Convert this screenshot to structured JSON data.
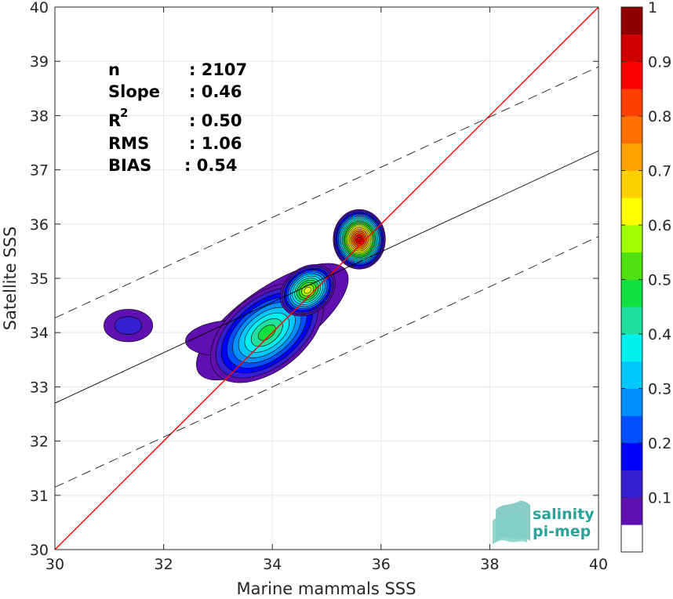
{
  "chart_data": {
    "type": "scatter",
    "subtype": "density-contour",
    "title": "",
    "xlabel": "Marine mammals SSS",
    "ylabel": "Satellite SSS",
    "xlim": [
      30,
      40
    ],
    "ylim": [
      30,
      40
    ],
    "x_ticks": [
      "30",
      "32",
      "34",
      "36",
      "38",
      "40"
    ],
    "y_ticks": [
      "30",
      "31",
      "32",
      "33",
      "34",
      "35",
      "36",
      "37",
      "38",
      "39",
      "40"
    ],
    "grid": true,
    "stats": [
      {
        "label": "n",
        "value": ": 2107"
      },
      {
        "label": "Slope",
        "value": ": 0.46"
      },
      {
        "label": "R",
        "sup": "2",
        "value": ": 0.50"
      },
      {
        "label": "RMS",
        "value": ": 1.06"
      },
      {
        "label": "BIAS",
        "value": ": 0.54"
      }
    ],
    "lines": {
      "identity": {
        "slope": 1,
        "intercept": 0,
        "color": "#ff0000"
      },
      "regression": {
        "slope": 0.46,
        "x0": 30,
        "y0": 32.7,
        "x1": 40,
        "y1": 37.35,
        "color": "#000000"
      },
      "upper_bound": {
        "x0": 30,
        "y0": 34.27,
        "x1": 40,
        "y1": 38.9,
        "dash": true
      },
      "lower_bound": {
        "x0": 30,
        "y0": 31.15,
        "x1": 40,
        "y1": 35.77,
        "dash": true
      }
    },
    "density_clusters": [
      {
        "cx": 31.35,
        "cy": 34.13,
        "rx": 0.45,
        "ry": 0.3,
        "peak": 0.1
      },
      {
        "cx": 33.9,
        "cy": 34.0,
        "rx": 1.2,
        "ry": 0.7,
        "peak": 0.45
      },
      {
        "cx": 34.65,
        "cy": 34.78,
        "rx": 0.55,
        "ry": 0.42,
        "peak": 0.62
      },
      {
        "cx": 35.6,
        "cy": 35.72,
        "rx": 0.48,
        "ry": 0.55,
        "peak": 0.97
      }
    ],
    "colorbar": {
      "min": 0,
      "max": 1,
      "tick_labels": [
        "0.1",
        "0.2",
        "0.3",
        "0.4",
        "0.5",
        "0.6",
        "0.7",
        "0.8",
        "0.9",
        "1"
      ],
      "colors": [
        "#ffffff",
        "#6010b0",
        "#3420d0",
        "#0000ff",
        "#0050ff",
        "#0090ff",
        "#00c8ff",
        "#00f0f0",
        "#20e0a0",
        "#10e040",
        "#50e010",
        "#a0ff00",
        "#ffff00",
        "#ffd000",
        "#ffa000",
        "#ff7000",
        "#ff4000",
        "#ff0000",
        "#d00000",
        "#900000"
      ]
    }
  },
  "logo": {
    "line1": "salinity",
    "line2": "pi-mep"
  }
}
